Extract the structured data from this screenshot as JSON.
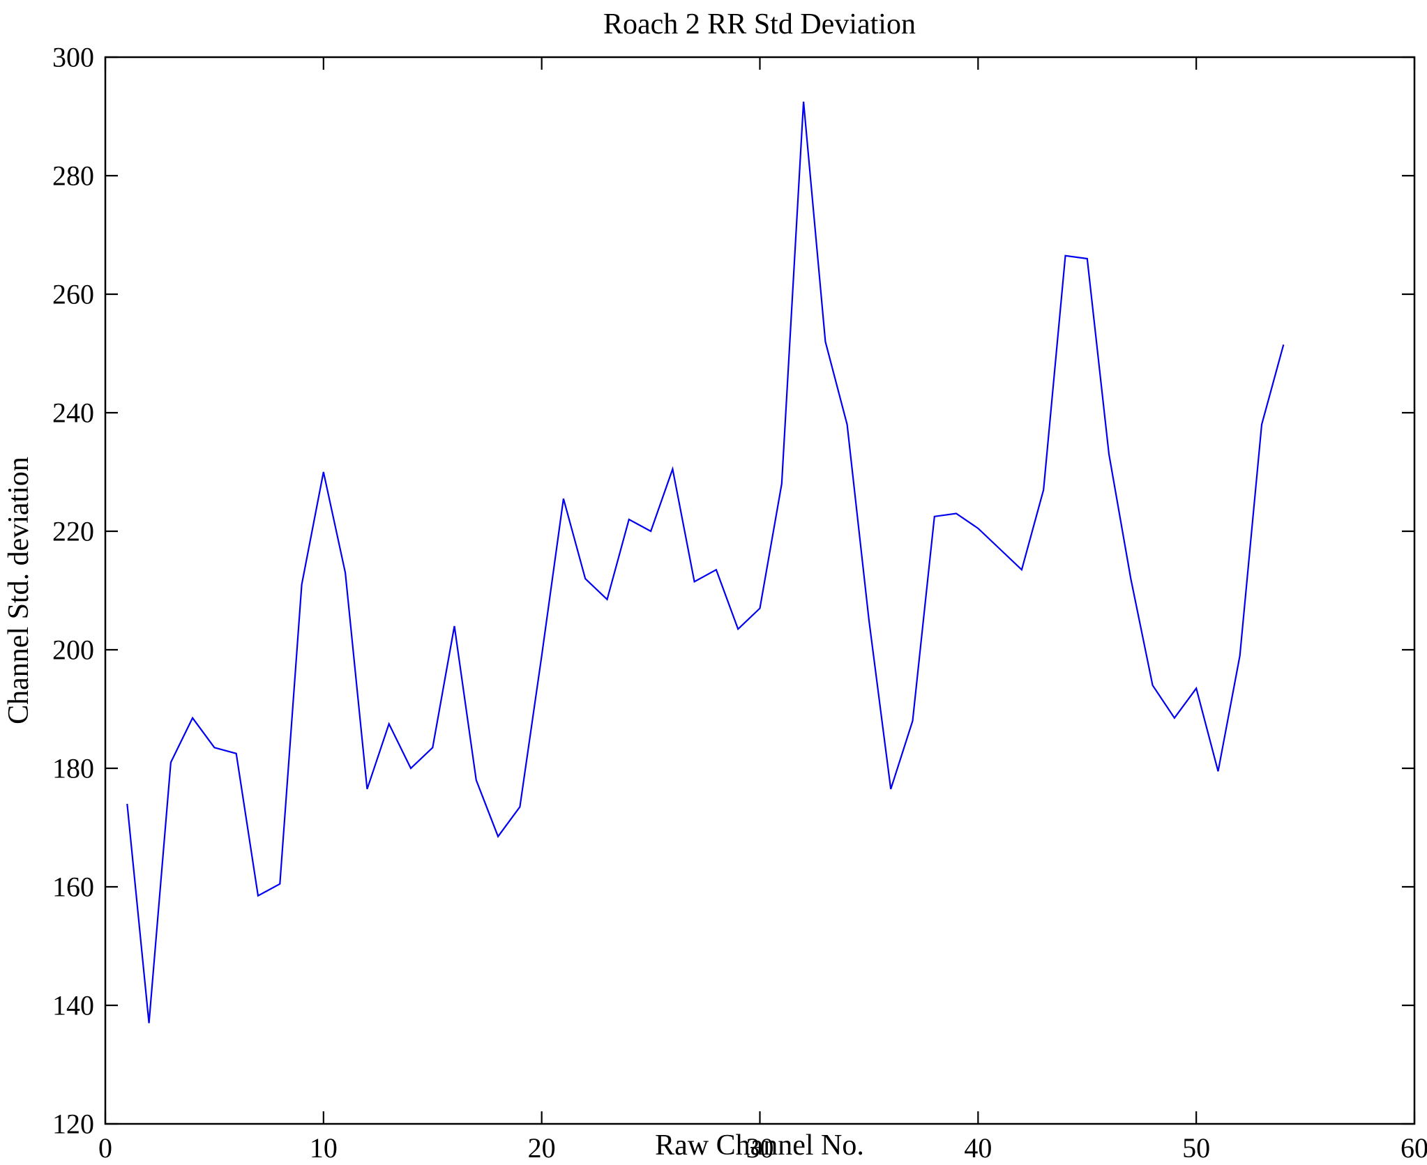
{
  "figure": {
    "background_color": "#ffffff",
    "axes_color": "#000000"
  },
  "chart_data": {
    "type": "line",
    "title": "Roach 2 RR Std Deviation",
    "xlabel": "Raw Channel No.",
    "ylabel": "Channel Std. deviation",
    "xlim": [
      0,
      60
    ],
    "ylim": [
      120,
      300
    ],
    "xticks": [
      0,
      10,
      20,
      30,
      40,
      50,
      60
    ],
    "yticks": [
      120,
      140,
      160,
      180,
      200,
      220,
      240,
      260,
      280,
      300
    ],
    "grid": false,
    "legend": "none",
    "line_color": "#0000ee",
    "x": [
      1,
      2,
      3,
      4,
      5,
      6,
      7,
      8,
      9,
      10,
      11,
      12,
      13,
      14,
      15,
      16,
      17,
      18,
      19,
      20,
      21,
      22,
      23,
      24,
      25,
      26,
      27,
      28,
      29,
      30,
      31,
      32,
      33,
      34,
      35,
      36,
      37,
      38,
      39,
      40,
      41,
      42,
      43,
      44,
      45,
      46,
      47,
      48,
      49,
      50,
      51,
      52,
      53,
      54
    ],
    "values": [
      174,
      137,
      181,
      188.5,
      183.5,
      182.5,
      158.5,
      160.5,
      211,
      230,
      213,
      176.5,
      187.5,
      180,
      183.5,
      204,
      178,
      168.5,
      173.5,
      199,
      225.5,
      212,
      208.5,
      222,
      220,
      230.5,
      211.5,
      213.5,
      203.5,
      207,
      228,
      292.5,
      252,
      238,
      205,
      176.5,
      188,
      222.5,
      223,
      220.5,
      217,
      213.5,
      227,
      266.5,
      266,
      233,
      212,
      194,
      188.5,
      193.5,
      179.5,
      199,
      238,
      251.5
    ]
  }
}
